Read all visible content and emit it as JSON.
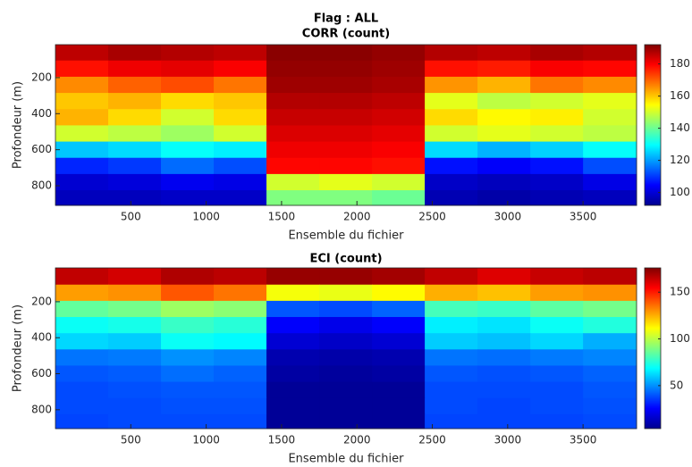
{
  "chart_data": [
    {
      "type": "heatmap",
      "title": "Flag : ALL",
      "subtitle": "CORR (count)",
      "xlabel": "Ensemble du fichier",
      "ylabel": "Profondeur (m)",
      "x": [
        175,
        525,
        875,
        1225,
        1575,
        1925,
        2275,
        2625,
        2975,
        3325,
        3675
      ],
      "y": [
        60,
        150,
        240,
        330,
        420,
        510,
        600,
        690,
        780,
        870
      ],
      "z": [
        [
          186,
          188,
          187,
          186,
          191,
          191,
          190,
          187,
          186,
          188,
          187
        ],
        [
          178,
          181,
          182,
          180,
          190,
          190,
          189,
          178,
          177,
          180,
          179
        ],
        [
          166,
          170,
          172,
          168,
          189,
          189,
          188,
          165,
          162,
          168,
          166
        ],
        [
          160,
          162,
          158,
          160,
          187,
          187,
          186,
          152,
          148,
          150,
          152
        ],
        [
          162,
          158,
          150,
          158,
          185,
          185,
          184,
          158,
          155,
          156,
          150
        ],
        [
          150,
          148,
          145,
          150,
          183,
          183,
          182,
          150,
          152,
          150,
          148
        ],
        [
          124,
          126,
          130,
          128,
          181,
          181,
          180,
          126,
          122,
          125,
          130
        ],
        [
          108,
          110,
          115,
          112,
          179,
          179,
          178,
          106,
          104,
          106,
          112
        ],
        [
          100,
          101,
          103,
          102,
          150,
          152,
          150,
          99,
          98,
          99,
          102
        ],
        [
          98,
          98,
          99,
          99,
          142,
          142,
          140,
          97,
          96,
          97,
          98
        ]
      ],
      "xlim": [
        0,
        3855
      ],
      "ylim": [
        909,
        17
      ],
      "xticks": [
        500,
        1000,
        1500,
        2000,
        2500,
        3000,
        3500
      ],
      "yticks": [
        200,
        400,
        600,
        800
      ],
      "clim": [
        92,
        192
      ],
      "cticks": [
        100,
        120,
        140,
        160,
        180
      ],
      "colormap": "jet"
    },
    {
      "type": "heatmap",
      "title": "ECI (count)",
      "xlabel": "Ensemble du fichier",
      "ylabel": "Profondeur (m)",
      "x": [
        175,
        525,
        875,
        1225,
        1575,
        1925,
        2275,
        2625,
        2975,
        3325,
        3675
      ],
      "y": [
        60,
        150,
        240,
        330,
        420,
        510,
        600,
        690,
        780,
        870
      ],
      "z": [
        [
          165,
          162,
          168,
          166,
          172,
          172,
          170,
          165,
          160,
          164,
          166
        ],
        [
          128,
          130,
          140,
          135,
          110,
          108,
          112,
          125,
          122,
          128,
          130
        ],
        [
          85,
          88,
          95,
          92,
          40,
          38,
          42,
          80,
          78,
          84,
          88
        ],
        [
          70,
          72,
          78,
          75,
          25,
          22,
          25,
          66,
          64,
          70,
          74
        ],
        [
          62,
          60,
          70,
          68,
          18,
          16,
          18,
          60,
          58,
          62,
          55
        ],
        [
          45,
          46,
          50,
          48,
          12,
          11,
          12,
          45,
          44,
          46,
          48
        ],
        [
          40,
          41,
          44,
          42,
          10,
          9,
          10,
          40,
          39,
          40,
          42
        ],
        [
          38,
          39,
          40,
          40,
          8,
          8,
          8,
          38,
          38,
          38,
          40
        ],
        [
          38,
          38,
          39,
          39,
          8,
          8,
          8,
          38,
          37,
          38,
          39
        ],
        [
          37,
          38,
          38,
          38,
          8,
          8,
          8,
          37,
          37,
          37,
          38
        ]
      ],
      "xlim": [
        0,
        3855
      ],
      "ylim": [
        905,
        12
      ],
      "xticks": [
        500,
        1000,
        1500,
        2000,
        2500,
        3000,
        3500
      ],
      "yticks": [
        200,
        400,
        600,
        800
      ],
      "clim": [
        4,
        176
      ],
      "cticks": [
        50,
        100,
        150
      ],
      "colormap": "jet"
    }
  ]
}
